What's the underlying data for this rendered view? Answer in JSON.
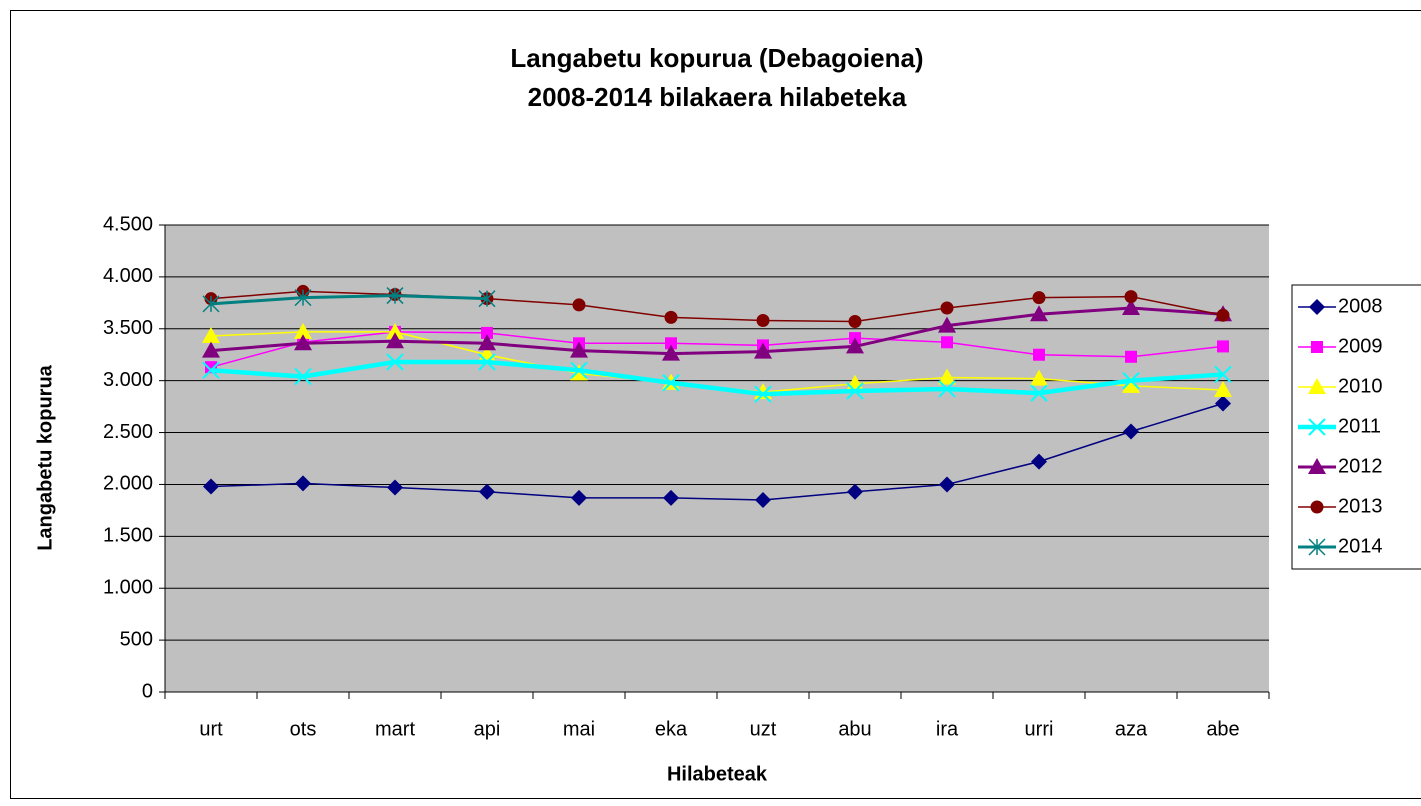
{
  "chart_data": {
    "type": "line",
    "title": "Langabetu kopurua (Debagoiena)",
    "subtitle": "2008-2014 bilakaera hilabeteka",
    "x_label": "Hilabeteak",
    "y_label": "Langabetu kopurua",
    "categories": [
      "urt",
      "ots",
      "mart",
      "api",
      "mai",
      "eka",
      "uzt",
      "abu",
      "ira",
      "urri",
      "aza",
      "abe"
    ],
    "ylim": [
      0,
      4500
    ],
    "yticks": [
      0,
      500,
      {
        "value": 1000,
        "label": "1.000"
      },
      {
        "value": 1500,
        "label": "1.500"
      },
      {
        "value": 2000,
        "label": "2.000"
      },
      {
        "value": 2500,
        "label": "2.500"
      },
      {
        "value": 3000,
        "label": "3.000"
      },
      {
        "value": 3500,
        "label": "3.500"
      },
      {
        "value": 4000,
        "label": "4.000"
      },
      {
        "value": 4500,
        "label": "4.500"
      }
    ],
    "grid": true,
    "plot_background": "#c0c0c0",
    "legend": "right",
    "series": [
      {
        "name": "2008",
        "color": "#000080",
        "marker": "diamond",
        "line_width": 1.5,
        "values": [
          1980,
          2010,
          1970,
          1930,
          1870,
          1870,
          1850,
          1930,
          2000,
          2220,
          2510,
          2780
        ]
      },
      {
        "name": "2009",
        "color": "#ff00ff",
        "marker": "square",
        "line_width": 1.5,
        "values": [
          3130,
          3370,
          3470,
          3460,
          3360,
          3360,
          3340,
          3410,
          3370,
          3250,
          3230,
          3330
        ]
      },
      {
        "name": "2010",
        "color": "#ffff00",
        "marker": "triangle",
        "line_width": 1.5,
        "values": [
          3430,
          3470,
          3470,
          3250,
          3070,
          2980,
          2890,
          2970,
          3030,
          3020,
          2950,
          2910
        ]
      },
      {
        "name": "2011",
        "color": "#00ffff",
        "marker": "x",
        "line_width": 4.5,
        "values": [
          3100,
          3040,
          3180,
          3180,
          3100,
          2980,
          2870,
          2900,
          2920,
          2880,
          3000,
          3060
        ]
      },
      {
        "name": "2012",
        "color": "#800080",
        "marker": "triangle",
        "line_width": 3,
        "values": [
          3290,
          3360,
          3380,
          3360,
          3290,
          3260,
          3280,
          3330,
          3530,
          3640,
          3700,
          3640
        ]
      },
      {
        "name": "2013",
        "color": "#800000",
        "marker": "circle",
        "line_width": 1.5,
        "values": [
          3790,
          3860,
          3830,
          3790,
          3730,
          3610,
          3580,
          3570,
          3700,
          3800,
          3810,
          3630
        ]
      },
      {
        "name": "2014",
        "color": "#008080",
        "marker": "star",
        "line_width": 3,
        "values": [
          3740,
          3800,
          3820,
          3790,
          null,
          null,
          null,
          null,
          null,
          null,
          null,
          null
        ]
      }
    ]
  }
}
